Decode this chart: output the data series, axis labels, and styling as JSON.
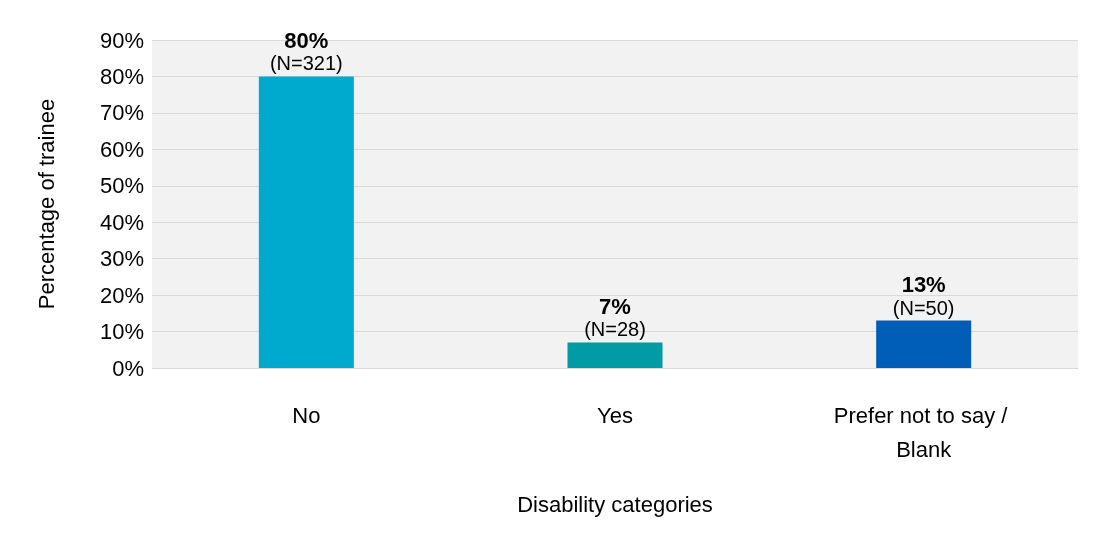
{
  "chart_data": {
    "type": "bar",
    "xlabel": "Disability categories",
    "ylabel": "Percentage of trainee",
    "categories": [
      "No",
      "Yes",
      "Prefer not to say / Blank"
    ],
    "values": [
      80,
      7,
      13
    ],
    "colors": [
      "#00a9ce",
      "#009ca6",
      "#005eb8"
    ],
    "value_labels": [
      "80%\n(N=321)",
      "7%\n(N=28)",
      "13%\n(N=50)"
    ],
    "ylim": [
      0,
      90
    ],
    "yticks": [
      {
        "value": 0,
        "label": "0%"
      },
      {
        "value": 10,
        "label": "10%"
      },
      {
        "value": 20,
        "label": "20%"
      },
      {
        "value": 30,
        "label": "30%"
      },
      {
        "value": 40,
        "label": "40%"
      },
      {
        "value": 50,
        "label": "50%"
      },
      {
        "value": 60,
        "label": "60%"
      },
      {
        "value": 70,
        "label": "70%"
      },
      {
        "value": 80,
        "label": "80%"
      },
      {
        "value": 90,
        "label": "90%"
      }
    ],
    "grid": "y"
  }
}
